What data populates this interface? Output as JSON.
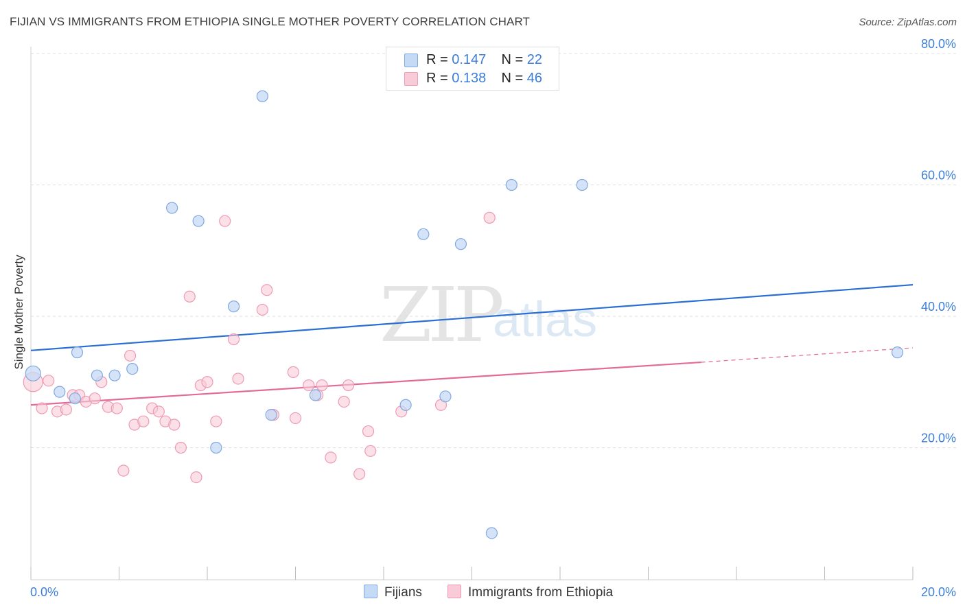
{
  "header": {
    "title": "FIJIAN VS IMMIGRANTS FROM ETHIOPIA SINGLE MOTHER POVERTY CORRELATION CHART",
    "source": "Source: ZipAtlas.com"
  },
  "watermark": {
    "zip": "ZIP",
    "atlas": "atlas"
  },
  "legend": {
    "rows": [
      {
        "r_label": "R =",
        "r_value": "0.147",
        "n_label": "N =",
        "n_value": "22",
        "color": "#a9c9f2"
      },
      {
        "r_label": "R =",
        "r_value": "0.138",
        "n_label": "N =",
        "n_value": "46",
        "color": "#f7b8c9"
      }
    ]
  },
  "bottom_legend": {
    "fijians": "Fijians",
    "ethiopia": "Immigrants from Ethiopia"
  },
  "colors": {
    "fijian_fill": "#c5daf5",
    "fijian_stroke": "#7fa9e0",
    "fijian_line": "#2a6fd1",
    "eth_fill": "#f9cbd8",
    "eth_stroke": "#ee9ab3",
    "eth_line": "#e26b98",
    "tick_text": "#3b7dd8",
    "grid": "#dedede"
  },
  "chart_data": {
    "type": "scatter",
    "title": "FIJIAN VS IMMIGRANTS FROM ETHIOPIA SINGLE MOTHER POVERTY CORRELATION CHART",
    "xlabel": "",
    "ylabel": "Single Mother Poverty",
    "xlim": [
      0,
      20
    ],
    "ylim": [
      0,
      82
    ],
    "x_ticks": [
      "0.0%",
      "20.0%"
    ],
    "y_ticks": [
      "20.0%",
      "40.0%",
      "60.0%",
      "80.0%"
    ],
    "y_tick_values": [
      20,
      40,
      60,
      80
    ],
    "grid": true,
    "legend_position": "top-center",
    "series": [
      {
        "name": "Fijians",
        "points": [
          [
            0.05,
            31.3
          ],
          [
            0.65,
            28.5
          ],
          [
            1.05,
            34.5
          ],
          [
            1.0,
            27.5
          ],
          [
            1.5,
            31.0
          ],
          [
            1.9,
            31.0
          ],
          [
            2.3,
            32.0
          ],
          [
            3.2,
            56.5
          ],
          [
            3.8,
            54.5
          ],
          [
            4.2,
            20.0
          ],
          [
            4.6,
            41.5
          ],
          [
            5.25,
            73.5
          ],
          [
            5.45,
            25.0
          ],
          [
            6.45,
            28.0
          ],
          [
            8.5,
            26.5
          ],
          [
            8.9,
            52.5
          ],
          [
            9.4,
            27.8
          ],
          [
            9.75,
            51.0
          ],
          [
            10.45,
            7.0
          ],
          [
            10.9,
            60.0
          ],
          [
            12.5,
            60.0
          ],
          [
            19.65,
            34.5
          ]
        ],
        "trend": {
          "x": [
            0,
            20
          ],
          "y": [
            34.8,
            44.8
          ]
        }
      },
      {
        "name": "Immigrants from Ethiopia",
        "points": [
          [
            0.05,
            30.0
          ],
          [
            0.25,
            26.0
          ],
          [
            0.4,
            30.2
          ],
          [
            0.6,
            25.5
          ],
          [
            0.8,
            25.8
          ],
          [
            0.95,
            28.0
          ],
          [
            1.1,
            28.0
          ],
          [
            1.25,
            27.0
          ],
          [
            1.45,
            27.5
          ],
          [
            1.6,
            30.0
          ],
          [
            1.75,
            26.2
          ],
          [
            1.95,
            26.0
          ],
          [
            2.1,
            16.5
          ],
          [
            2.25,
            34.0
          ],
          [
            2.35,
            23.5
          ],
          [
            2.55,
            24.0
          ],
          [
            2.75,
            26.0
          ],
          [
            2.9,
            25.5
          ],
          [
            3.05,
            24.0
          ],
          [
            3.25,
            23.5
          ],
          [
            3.4,
            20.0
          ],
          [
            3.6,
            43.0
          ],
          [
            3.75,
            15.5
          ],
          [
            3.85,
            29.5
          ],
          [
            4.0,
            30.0
          ],
          [
            4.2,
            24.0
          ],
          [
            4.4,
            54.5
          ],
          [
            4.6,
            36.5
          ],
          [
            4.7,
            30.5
          ],
          [
            5.25,
            41.0
          ],
          [
            5.35,
            44.0
          ],
          [
            5.5,
            25.0
          ],
          [
            5.95,
            31.5
          ],
          [
            6.0,
            24.5
          ],
          [
            6.3,
            29.5
          ],
          [
            6.5,
            28.0
          ],
          [
            6.6,
            29.5
          ],
          [
            6.8,
            18.5
          ],
          [
            7.1,
            27.0
          ],
          [
            7.2,
            29.5
          ],
          [
            7.45,
            16.0
          ],
          [
            7.65,
            22.5
          ],
          [
            7.7,
            19.5
          ],
          [
            8.4,
            25.5
          ],
          [
            9.3,
            26.5
          ],
          [
            10.4,
            55.0
          ]
        ],
        "trend": {
          "x": [
            0,
            15.2
          ],
          "y": [
            26.5,
            33.0
          ],
          "dashed_to": [
            20,
            35.2
          ]
        }
      }
    ]
  }
}
